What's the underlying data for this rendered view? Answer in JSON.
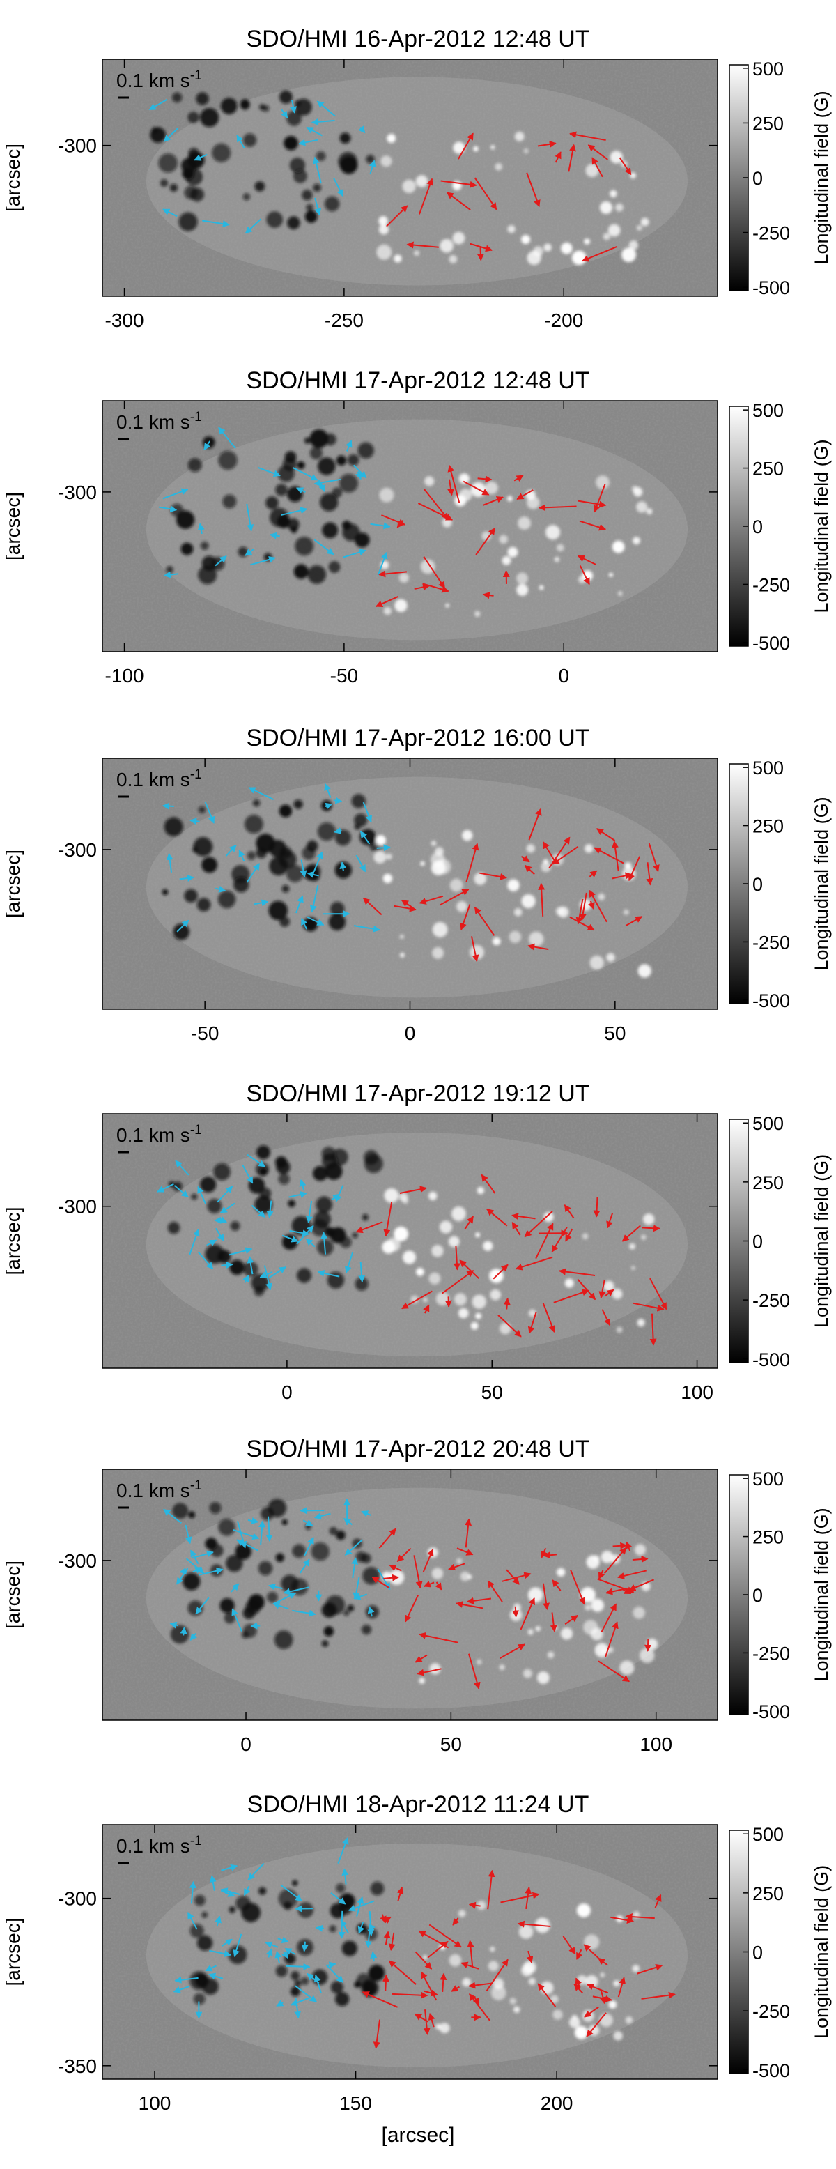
{
  "unit_label": "[arcsec]",
  "scale_bar_label": "0.1 km s",
  "scale_bar_exponent": "-1",
  "colorbar": {
    "label": "Longitudinal field (G)",
    "ticks": [
      "500",
      "250",
      "0",
      "-250",
      "-500"
    ],
    "range": [
      -500,
      500
    ],
    "colormap": "grayscale black-to-white"
  },
  "arrow_colors": {
    "negative_polarity": "#29b6e0",
    "positive_polarity": "#e31a1a"
  },
  "panels": [
    {
      "title": "SDO/HMI 16-Apr-2012 12:48 UT",
      "xticks": [
        "-300",
        "-250",
        "-200"
      ],
      "xtick_values": [
        -300,
        -250,
        -200
      ],
      "xlim": [
        -305,
        -165
      ],
      "yticks": [
        "-300"
      ],
      "ytick_values": [
        -300
      ],
      "ylim": [
        -335,
        -280
      ],
      "has_xlabel": false
    },
    {
      "title": "SDO/HMI 17-Apr-2012 12:48 UT",
      "xticks": [
        "-100",
        "-50",
        "0"
      ],
      "xtick_values": [
        -100,
        -50,
        0
      ],
      "xlim": [
        -105,
        35
      ],
      "yticks": [
        "-300"
      ],
      "ytick_values": [
        -300
      ],
      "ylim": [
        -335,
        -280
      ],
      "has_xlabel": false
    },
    {
      "title": "SDO/HMI 17-Apr-2012 16:00 UT",
      "xticks": [
        "-50",
        "0",
        "50"
      ],
      "xtick_values": [
        -50,
        0,
        50
      ],
      "xlim": [
        -75,
        75
      ],
      "yticks": [
        "-300"
      ],
      "ytick_values": [
        -300
      ],
      "ylim": [
        -335,
        -280
      ],
      "has_xlabel": false
    },
    {
      "title": "SDO/HMI 17-Apr-2012 19:12 UT",
      "xticks": [
        "0",
        "50",
        "100"
      ],
      "xtick_values": [
        0,
        50,
        100
      ],
      "xlim": [
        -45,
        105
      ],
      "yticks": [
        "-300"
      ],
      "ytick_values": [
        -300
      ],
      "ylim": [
        -335,
        -280
      ],
      "has_xlabel": false
    },
    {
      "title": "SDO/HMI 17-Apr-2012 20:48 UT",
      "xticks": [
        "0",
        "50",
        "100"
      ],
      "xtick_values": [
        0,
        50,
        100
      ],
      "xlim": [
        -35,
        115
      ],
      "yticks": [
        "-300"
      ],
      "ytick_values": [
        -300
      ],
      "ylim": [
        -335,
        -280
      ],
      "has_xlabel": false
    },
    {
      "title": "SDO/HMI 18-Apr-2012 11:24 UT",
      "xticks": [
        "100",
        "150",
        "200"
      ],
      "xtick_values": [
        100,
        150,
        200
      ],
      "xlim": [
        87,
        240
      ],
      "yticks": [
        "-300",
        "-350"
      ],
      "ytick_values": [
        -300,
        -350
      ],
      "ylim": [
        -354,
        -278
      ],
      "has_xlabel": true
    }
  ]
}
